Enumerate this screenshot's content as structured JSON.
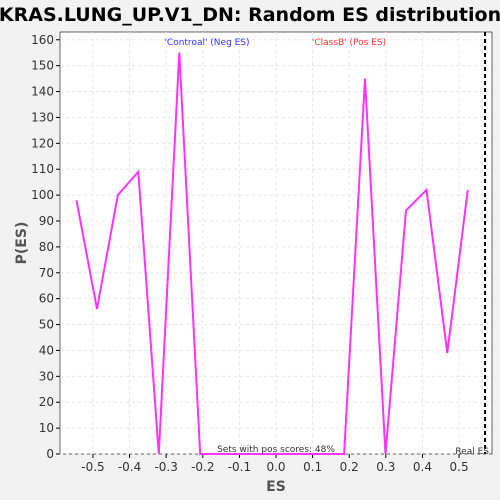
{
  "chart_data": {
    "type": "line",
    "title": "KRAS.LUNG_UP.V1_DN: Random ES distribution",
    "xlabel": "ES",
    "ylabel": "P(ES)",
    "xlim": [
      -0.59,
      0.59
    ],
    "ylim": [
      0,
      163
    ],
    "xticks": [
      -0.5,
      -0.4,
      -0.3,
      -0.2,
      -0.1,
      0.0,
      0.1,
      0.2,
      0.3,
      0.4,
      0.5
    ],
    "xtick_labels": [
      "-0.5",
      "-0.4",
      "-0.3",
      "-0.2",
      "-0.1",
      "0.0",
      "0.1",
      "0.2",
      "0.3",
      "0.4",
      "0.5"
    ],
    "yticks": [
      0,
      10,
      20,
      30,
      40,
      50,
      60,
      70,
      80,
      90,
      100,
      110,
      120,
      130,
      140,
      150,
      160
    ],
    "ytick_labels": [
      "0",
      "10",
      "20",
      "30",
      "40",
      "50",
      "60",
      "70",
      "80",
      "90",
      "100",
      "110",
      "120",
      "130",
      "140",
      "150",
      "160"
    ],
    "grid": true,
    "series": [
      {
        "color": "#ff33ff",
        "x": [
          -0.545,
          -0.489,
          -0.432,
          -0.376,
          -0.32,
          -0.264,
          -0.207,
          -0.151,
          -0.095,
          -0.039,
          0.018,
          0.074,
          0.13,
          0.186,
          0.243,
          0.299,
          0.355,
          0.411,
          0.468,
          0.524
        ],
        "y": [
          98,
          56,
          100,
          109,
          0,
          155,
          0,
          0,
          0,
          0,
          0,
          0,
          0,
          0,
          145,
          0,
          94,
          102,
          39,
          102
        ]
      }
    ],
    "real_es": {
      "x": 0.571,
      "label": "Real ES",
      "color": "#000000"
    },
    "legend": {
      "neg_label": "'Controal' (Neg ES)",
      "neg_color": "#3333ff",
      "pos_label": "'ClassB' (Pos ES)",
      "pos_color": "#ff3333",
      "placement": "top"
    },
    "annotation": "Sets with pos scores: 48%"
  }
}
